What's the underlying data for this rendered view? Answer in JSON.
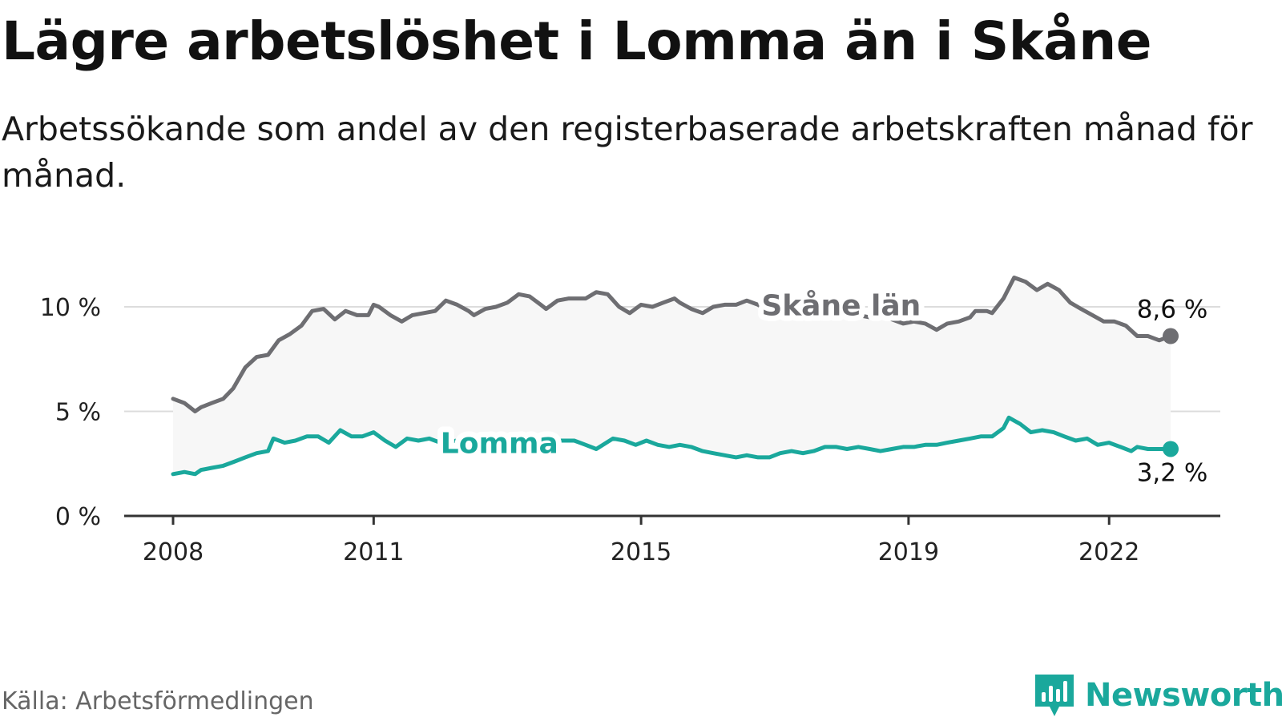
{
  "title": "Lägre arbetslöshet i Lomma än i Skåne",
  "subtitle": "Arbetssökande som andel av den registerbaserade arbetskraften månad för månad.",
  "source": "Källa: Arbetsförmedlingen",
  "brand": {
    "name": "Newsworthy",
    "icon": "newsworthy-logo-icon",
    "color": "#1aa89c"
  },
  "chart_data": {
    "type": "line",
    "title": "Lägre arbetslöshet i Lomma än i Skåne",
    "subtitle": "Arbetssökande som andel av den registerbaserade arbetskraften månad för månad.",
    "xlabel": "",
    "ylabel": "",
    "x_range": [
      2008,
      2023
    ],
    "ylim": [
      0,
      10
    ],
    "grid": true,
    "x_ticks": [
      {
        "value": 2008,
        "label": "2008"
      },
      {
        "value": 2011,
        "label": "2011"
      },
      {
        "value": 2015,
        "label": "2015"
      },
      {
        "value": 2019,
        "label": "2019"
      },
      {
        "value": 2022,
        "label": "2022"
      }
    ],
    "y_ticks": [
      {
        "value": 0,
        "label": "0 %"
      },
      {
        "value": 5,
        "label": "5 %"
      },
      {
        "value": 10,
        "label": "10 %"
      }
    ],
    "series": [
      {
        "name": "Skåne län",
        "color": "#6e6e72",
        "end_label": "8,6 %",
        "label_x": 2016.8,
        "points": [
          [
            2008.0,
            5.6
          ],
          [
            2008.17,
            5.4
          ],
          [
            2008.33,
            5.0
          ],
          [
            2008.42,
            5.2
          ],
          [
            2008.58,
            5.4
          ],
          [
            2008.75,
            5.6
          ],
          [
            2008.9,
            6.1
          ],
          [
            2009.08,
            7.1
          ],
          [
            2009.25,
            7.6
          ],
          [
            2009.42,
            7.7
          ],
          [
            2009.58,
            8.4
          ],
          [
            2009.75,
            8.7
          ],
          [
            2009.92,
            9.1
          ],
          [
            2010.08,
            9.8
          ],
          [
            2010.25,
            9.9
          ],
          [
            2010.42,
            9.4
          ],
          [
            2010.58,
            9.8
          ],
          [
            2010.75,
            9.6
          ],
          [
            2010.92,
            9.6
          ],
          [
            2011.0,
            10.1
          ],
          [
            2011.08,
            10.0
          ],
          [
            2011.25,
            9.6
          ],
          [
            2011.42,
            9.3
          ],
          [
            2011.58,
            9.6
          ],
          [
            2011.75,
            9.7
          ],
          [
            2011.92,
            9.8
          ],
          [
            2012.08,
            10.3
          ],
          [
            2012.25,
            10.1
          ],
          [
            2012.42,
            9.8
          ],
          [
            2012.5,
            9.6
          ],
          [
            2012.67,
            9.9
          ],
          [
            2012.83,
            10.0
          ],
          [
            2013.0,
            10.2
          ],
          [
            2013.17,
            10.6
          ],
          [
            2013.33,
            10.5
          ],
          [
            2013.5,
            10.1
          ],
          [
            2013.58,
            9.9
          ],
          [
            2013.75,
            10.3
          ],
          [
            2013.92,
            10.4
          ],
          [
            2014.08,
            10.4
          ],
          [
            2014.17,
            10.4
          ],
          [
            2014.33,
            10.7
          ],
          [
            2014.5,
            10.6
          ],
          [
            2014.67,
            10.0
          ],
          [
            2014.83,
            9.7
          ],
          [
            2015.0,
            10.1
          ],
          [
            2015.17,
            10.0
          ],
          [
            2015.33,
            10.2
          ],
          [
            2015.5,
            10.4
          ],
          [
            2015.58,
            10.2
          ],
          [
            2015.75,
            9.9
          ],
          [
            2015.92,
            9.7
          ],
          [
            2016.08,
            10.0
          ],
          [
            2016.25,
            10.1
          ],
          [
            2016.42,
            10.1
          ],
          [
            2016.58,
            10.3
          ],
          [
            2016.75,
            10.1
          ],
          [
            2016.92,
            9.7
          ],
          [
            2017.08,
            9.7
          ],
          [
            2017.25,
            9.8
          ],
          [
            2017.42,
            9.7
          ],
          [
            2017.58,
            9.8
          ],
          [
            2017.75,
            9.6
          ],
          [
            2017.92,
            9.6
          ],
          [
            2018.08,
            9.7
          ],
          [
            2018.25,
            9.6
          ],
          [
            2018.42,
            9.5
          ],
          [
            2018.58,
            9.6
          ],
          [
            2018.75,
            9.4
          ],
          [
            2018.92,
            9.2
          ],
          [
            2019.08,
            9.3
          ],
          [
            2019.25,
            9.2
          ],
          [
            2019.42,
            8.9
          ],
          [
            2019.58,
            9.2
          ],
          [
            2019.75,
            9.3
          ],
          [
            2019.92,
            9.5
          ],
          [
            2020.0,
            9.8
          ],
          [
            2020.17,
            9.8
          ],
          [
            2020.25,
            9.7
          ],
          [
            2020.42,
            10.4
          ],
          [
            2020.58,
            11.4
          ],
          [
            2020.75,
            11.2
          ],
          [
            2020.92,
            10.8
          ],
          [
            2021.08,
            11.1
          ],
          [
            2021.25,
            10.8
          ],
          [
            2021.42,
            10.2
          ],
          [
            2021.58,
            9.9
          ],
          [
            2021.75,
            9.6
          ],
          [
            2021.92,
            9.3
          ],
          [
            2022.08,
            9.3
          ],
          [
            2022.25,
            9.1
          ],
          [
            2022.42,
            8.6
          ],
          [
            2022.58,
            8.6
          ],
          [
            2022.75,
            8.4
          ],
          [
            2022.92,
            8.6
          ]
        ]
      },
      {
        "name": "Lomma",
        "color": "#1aa89c",
        "end_label": "3,2 %",
        "label_x": 2012.0,
        "points": [
          [
            2008.0,
            2.0
          ],
          [
            2008.17,
            2.1
          ],
          [
            2008.33,
            2.0
          ],
          [
            2008.42,
            2.2
          ],
          [
            2008.58,
            2.3
          ],
          [
            2008.75,
            2.4
          ],
          [
            2008.92,
            2.6
          ],
          [
            2009.08,
            2.8
          ],
          [
            2009.25,
            3.0
          ],
          [
            2009.42,
            3.1
          ],
          [
            2009.5,
            3.7
          ],
          [
            2009.67,
            3.5
          ],
          [
            2009.83,
            3.6
          ],
          [
            2010.0,
            3.8
          ],
          [
            2010.17,
            3.8
          ],
          [
            2010.33,
            3.5
          ],
          [
            2010.5,
            4.1
          ],
          [
            2010.67,
            3.8
          ],
          [
            2010.83,
            3.8
          ],
          [
            2011.0,
            4.0
          ],
          [
            2011.17,
            3.6
          ],
          [
            2011.33,
            3.3
          ],
          [
            2011.5,
            3.7
          ],
          [
            2011.67,
            3.6
          ],
          [
            2011.83,
            3.7
          ],
          [
            2012.0,
            3.5
          ],
          [
            2012.25,
            3.6
          ],
          [
            2012.5,
            3.7
          ],
          [
            2012.75,
            3.6
          ],
          [
            2013.0,
            3.7
          ],
          [
            2013.25,
            3.6
          ],
          [
            2013.5,
            3.7
          ],
          [
            2013.75,
            3.6
          ],
          [
            2014.0,
            3.6
          ],
          [
            2014.17,
            3.4
          ],
          [
            2014.33,
            3.2
          ],
          [
            2014.58,
            3.7
          ],
          [
            2014.75,
            3.6
          ],
          [
            2014.92,
            3.4
          ],
          [
            2015.08,
            3.6
          ],
          [
            2015.25,
            3.4
          ],
          [
            2015.42,
            3.3
          ],
          [
            2015.58,
            3.4
          ],
          [
            2015.75,
            3.3
          ],
          [
            2015.92,
            3.1
          ],
          [
            2016.08,
            3.0
          ],
          [
            2016.25,
            2.9
          ],
          [
            2016.42,
            2.8
          ],
          [
            2016.58,
            2.9
          ],
          [
            2016.75,
            2.8
          ],
          [
            2016.92,
            2.8
          ],
          [
            2017.08,
            3.0
          ],
          [
            2017.25,
            3.1
          ],
          [
            2017.42,
            3.0
          ],
          [
            2017.58,
            3.1
          ],
          [
            2017.75,
            3.3
          ],
          [
            2017.92,
            3.3
          ],
          [
            2018.08,
            3.2
          ],
          [
            2018.25,
            3.3
          ],
          [
            2018.42,
            3.2
          ],
          [
            2018.58,
            3.1
          ],
          [
            2018.75,
            3.2
          ],
          [
            2018.92,
            3.3
          ],
          [
            2019.08,
            3.3
          ],
          [
            2019.25,
            3.4
          ],
          [
            2019.42,
            3.4
          ],
          [
            2019.58,
            3.5
          ],
          [
            2019.75,
            3.6
          ],
          [
            2019.92,
            3.7
          ],
          [
            2020.08,
            3.8
          ],
          [
            2020.25,
            3.8
          ],
          [
            2020.42,
            4.2
          ],
          [
            2020.5,
            4.7
          ],
          [
            2020.67,
            4.4
          ],
          [
            2020.83,
            4.0
          ],
          [
            2021.0,
            4.1
          ],
          [
            2021.17,
            4.0
          ],
          [
            2021.33,
            3.8
          ],
          [
            2021.5,
            3.6
          ],
          [
            2021.67,
            3.7
          ],
          [
            2021.83,
            3.4
          ],
          [
            2022.0,
            3.5
          ],
          [
            2022.17,
            3.3
          ],
          [
            2022.33,
            3.1
          ],
          [
            2022.42,
            3.3
          ],
          [
            2022.58,
            3.2
          ],
          [
            2022.75,
            3.2
          ],
          [
            2022.92,
            3.2
          ]
        ]
      }
    ],
    "area_between_series": {
      "color": "#f7f7f7"
    },
    "end_markers": true
  }
}
